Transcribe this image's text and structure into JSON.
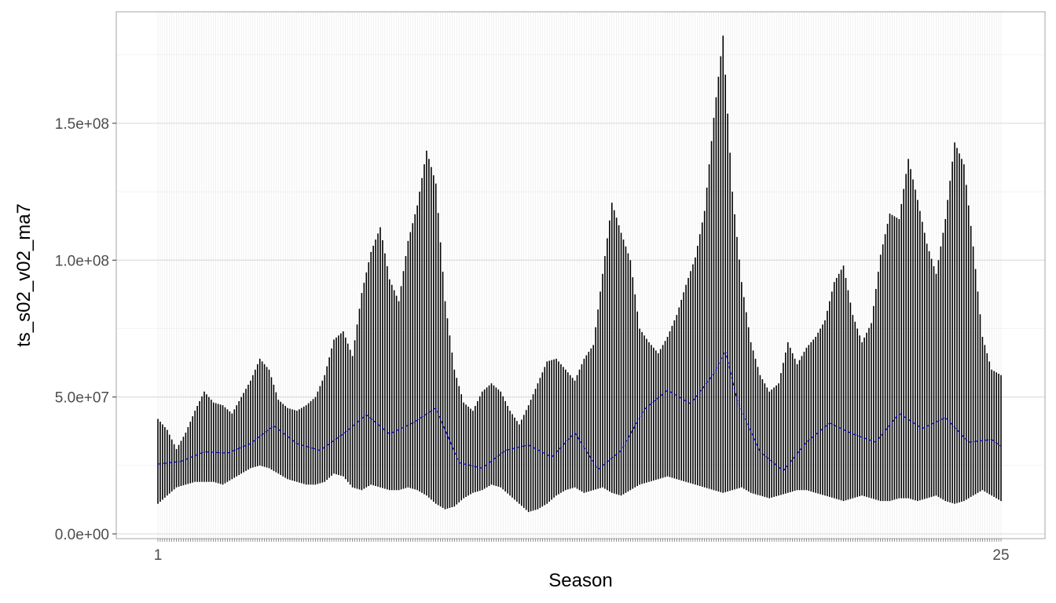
{
  "chart_data": {
    "type": "line",
    "title": "",
    "xlabel": "Season",
    "ylabel": "ts_s02_v02_ma7",
    "ylim": [
      0,
      190000000
    ],
    "yticks": [
      {
        "value": 0,
        "label": "0.0e+00"
      },
      {
        "value": 50000000,
        "label": "5.0e+07"
      },
      {
        "value": 100000000,
        "label": "1.0e+08"
      },
      {
        "value": 150000000,
        "label": "1.5e+08"
      }
    ],
    "x_tick_labels_note": "",
    "x_first_label": "1",
    "x_last_label": "25",
    "grid": true,
    "legend": "none",
    "num_seasons": 365,
    "colors": {
      "background": "#ffffff",
      "grid_major": "#d9d9d9",
      "grid_minor": "#ececec",
      "panel_border": "#b3b3b3",
      "bars": "#000000",
      "mean_line": "#0000cc"
    },
    "series": [
      {
        "kind": "range",
        "x_start": 1,
        "x_end": 365,
        "upper": [
          [
            0,
            42000000
          ],
          [
            4,
            38000000
          ],
          [
            8,
            31000000
          ],
          [
            12,
            37000000
          ],
          [
            16,
            45000000
          ],
          [
            20,
            52000000
          ],
          [
            24,
            48000000
          ],
          [
            28,
            47000000
          ],
          [
            32,
            44000000
          ],
          [
            36,
            50000000
          ],
          [
            40,
            56000000
          ],
          [
            44,
            64000000
          ],
          [
            48,
            60000000
          ],
          [
            52,
            49000000
          ],
          [
            56,
            46000000
          ],
          [
            60,
            45000000
          ],
          [
            64,
            47000000
          ],
          [
            68,
            50000000
          ],
          [
            72,
            58000000
          ],
          [
            76,
            71000000
          ],
          [
            80,
            74000000
          ],
          [
            84,
            65000000
          ],
          [
            88,
            88000000
          ],
          [
            92,
            103000000
          ],
          [
            96,
            112000000
          ],
          [
            100,
            93000000
          ],
          [
            104,
            85000000
          ],
          [
            108,
            107000000
          ],
          [
            112,
            120000000
          ],
          [
            116,
            140000000
          ],
          [
            120,
            128000000
          ],
          [
            124,
            85000000
          ],
          [
            128,
            60000000
          ],
          [
            132,
            48000000
          ],
          [
            136,
            45000000
          ],
          [
            140,
            52000000
          ],
          [
            144,
            55000000
          ],
          [
            148,
            52000000
          ],
          [
            152,
            45000000
          ],
          [
            156,
            40000000
          ],
          [
            160,
            47000000
          ],
          [
            164,
            55000000
          ],
          [
            168,
            63000000
          ],
          [
            172,
            64000000
          ],
          [
            176,
            60000000
          ],
          [
            180,
            56000000
          ],
          [
            184,
            64000000
          ],
          [
            188,
            69000000
          ],
          [
            192,
            95000000
          ],
          [
            196,
            121000000
          ],
          [
            200,
            110000000
          ],
          [
            204,
            100000000
          ],
          [
            208,
            75000000
          ],
          [
            212,
            70000000
          ],
          [
            216,
            66000000
          ],
          [
            220,
            72000000
          ],
          [
            224,
            80000000
          ],
          [
            228,
            91000000
          ],
          [
            232,
            101000000
          ],
          [
            236,
            118000000
          ],
          [
            240,
            152000000
          ],
          [
            244,
            182000000
          ],
          [
            248,
            125000000
          ],
          [
            252,
            92000000
          ],
          [
            256,
            70000000
          ],
          [
            260,
            58000000
          ],
          [
            264,
            52000000
          ],
          [
            268,
            55000000
          ],
          [
            272,
            70000000
          ],
          [
            276,
            62000000
          ],
          [
            280,
            68000000
          ],
          [
            284,
            72000000
          ],
          [
            288,
            78000000
          ],
          [
            292,
            92000000
          ],
          [
            296,
            98000000
          ],
          [
            300,
            80000000
          ],
          [
            304,
            70000000
          ],
          [
            308,
            77000000
          ],
          [
            312,
            102000000
          ],
          [
            316,
            117000000
          ],
          [
            320,
            115000000
          ],
          [
            324,
            137000000
          ],
          [
            328,
            122000000
          ],
          [
            332,
            106000000
          ],
          [
            336,
            95000000
          ],
          [
            340,
            115000000
          ],
          [
            344,
            143000000
          ],
          [
            348,
            135000000
          ],
          [
            352,
            105000000
          ],
          [
            356,
            72000000
          ],
          [
            360,
            60000000
          ],
          [
            364,
            58000000
          ]
        ],
        "lower": [
          [
            0,
            11000000
          ],
          [
            4,
            14000000
          ],
          [
            8,
            17000000
          ],
          [
            12,
            18000000
          ],
          [
            16,
            19000000
          ],
          [
            20,
            19000000
          ],
          [
            24,
            19000000
          ],
          [
            28,
            18000000
          ],
          [
            32,
            20000000
          ],
          [
            36,
            22000000
          ],
          [
            40,
            24000000
          ],
          [
            44,
            25000000
          ],
          [
            48,
            24000000
          ],
          [
            52,
            22000000
          ],
          [
            56,
            20000000
          ],
          [
            60,
            19000000
          ],
          [
            64,
            18000000
          ],
          [
            68,
            18000000
          ],
          [
            72,
            19000000
          ],
          [
            76,
            22000000
          ],
          [
            80,
            21000000
          ],
          [
            84,
            17000000
          ],
          [
            88,
            16000000
          ],
          [
            92,
            18000000
          ],
          [
            96,
            17000000
          ],
          [
            100,
            16000000
          ],
          [
            104,
            16000000
          ],
          [
            108,
            17000000
          ],
          [
            112,
            16000000
          ],
          [
            116,
            14000000
          ],
          [
            120,
            11000000
          ],
          [
            124,
            9000000
          ],
          [
            128,
            10000000
          ],
          [
            132,
            13000000
          ],
          [
            136,
            15000000
          ],
          [
            140,
            16000000
          ],
          [
            144,
            18000000
          ],
          [
            148,
            17000000
          ],
          [
            152,
            14000000
          ],
          [
            156,
            11000000
          ],
          [
            160,
            8000000
          ],
          [
            164,
            9000000
          ],
          [
            168,
            11000000
          ],
          [
            172,
            14000000
          ],
          [
            176,
            16000000
          ],
          [
            180,
            17000000
          ],
          [
            184,
            15000000
          ],
          [
            188,
            16000000
          ],
          [
            192,
            17000000
          ],
          [
            196,
            15000000
          ],
          [
            200,
            14000000
          ],
          [
            204,
            16000000
          ],
          [
            208,
            18000000
          ],
          [
            212,
            19000000
          ],
          [
            216,
            20000000
          ],
          [
            220,
            21000000
          ],
          [
            224,
            20000000
          ],
          [
            228,
            19000000
          ],
          [
            232,
            18000000
          ],
          [
            236,
            17000000
          ],
          [
            240,
            16000000
          ],
          [
            244,
            15000000
          ],
          [
            248,
            16000000
          ],
          [
            252,
            17000000
          ],
          [
            256,
            15000000
          ],
          [
            260,
            14000000
          ],
          [
            264,
            13000000
          ],
          [
            268,
            14000000
          ],
          [
            272,
            15000000
          ],
          [
            276,
            16000000
          ],
          [
            280,
            16000000
          ],
          [
            284,
            15000000
          ],
          [
            288,
            14000000
          ],
          [
            292,
            13000000
          ],
          [
            296,
            12000000
          ],
          [
            300,
            13000000
          ],
          [
            304,
            14000000
          ],
          [
            308,
            13000000
          ],
          [
            312,
            12000000
          ],
          [
            316,
            12000000
          ],
          [
            320,
            13000000
          ],
          [
            324,
            13000000
          ],
          [
            328,
            12000000
          ],
          [
            332,
            13000000
          ],
          [
            336,
            14000000
          ],
          [
            340,
            12000000
          ],
          [
            344,
            11000000
          ],
          [
            348,
            12000000
          ],
          [
            352,
            14000000
          ],
          [
            356,
            16000000
          ],
          [
            360,
            14000000
          ],
          [
            364,
            12000000
          ]
        ]
      },
      {
        "kind": "mean",
        "x_start": 1,
        "points": [
          [
            0,
            25500000
          ],
          [
            10,
            26500000
          ],
          [
            20,
            30000000
          ],
          [
            30,
            29500000
          ],
          [
            40,
            33000000
          ],
          [
            50,
            39500000
          ],
          [
            60,
            33000000
          ],
          [
            70,
            30500000
          ],
          [
            80,
            36500000
          ],
          [
            90,
            43500000
          ],
          [
            100,
            36500000
          ],
          [
            110,
            40500000
          ],
          [
            120,
            46000000
          ],
          [
            130,
            26000000
          ],
          [
            140,
            24000000
          ],
          [
            150,
            30500000
          ],
          [
            160,
            32500000
          ],
          [
            170,
            28000000
          ],
          [
            180,
            37000000
          ],
          [
            190,
            23500000
          ],
          [
            200,
            30500000
          ],
          [
            210,
            45500000
          ],
          [
            220,
            52500000
          ],
          [
            230,
            47500000
          ],
          [
            240,
            58500000
          ],
          [
            245,
            67000000
          ],
          [
            250,
            49000000
          ],
          [
            260,
            30000000
          ],
          [
            270,
            23000000
          ],
          [
            280,
            33500000
          ],
          [
            290,
            40500000
          ],
          [
            300,
            36500000
          ],
          [
            310,
            33500000
          ],
          [
            320,
            44000000
          ],
          [
            330,
            38500000
          ],
          [
            340,
            42500000
          ],
          [
            350,
            33500000
          ],
          [
            360,
            34500000
          ],
          [
            364,
            32000000
          ]
        ]
      }
    ]
  }
}
